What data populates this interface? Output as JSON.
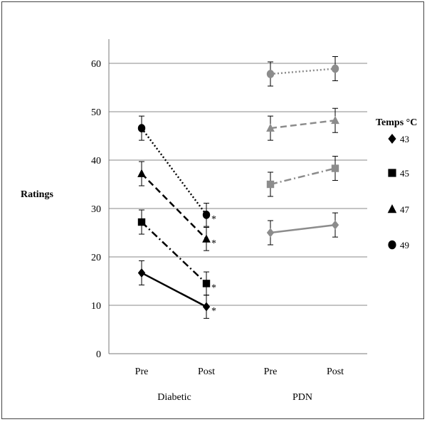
{
  "chart_data": {
    "type": "line",
    "ylabel": "Ratings",
    "ylim": [
      0,
      65
    ],
    "yticks": [
      0,
      10,
      20,
      30,
      40,
      50,
      60
    ],
    "grid": true,
    "groups": [
      {
        "name": "Diabetic",
        "categories": [
          "Pre",
          "Post"
        ]
      },
      {
        "name": "PDN",
        "categories": [
          "Pre",
          "Post"
        ]
      }
    ],
    "legend": {
      "title": "Temps °C",
      "position": "right",
      "entries": [
        "43",
        "45",
        "47",
        "49"
      ]
    },
    "series": [
      {
        "name": "43",
        "group": "Diabetic",
        "marker": "diamond",
        "dash": "solid",
        "color": "#000000",
        "values": [
          16.7,
          9.7
        ],
        "errors": [
          2.5,
          2.4
        ],
        "significant": [
          false,
          true
        ]
      },
      {
        "name": "45",
        "group": "Diabetic",
        "marker": "square",
        "dash": "dashdot",
        "color": "#000000",
        "values": [
          27.2,
          14.5
        ],
        "errors": [
          2.5,
          2.4
        ],
        "significant": [
          false,
          true
        ]
      },
      {
        "name": "47",
        "group": "Diabetic",
        "marker": "triangle",
        "dash": "dash",
        "color": "#000000",
        "values": [
          37.2,
          23.7
        ],
        "errors": [
          2.5,
          2.4
        ],
        "significant": [
          false,
          true
        ]
      },
      {
        "name": "49",
        "group": "Diabetic",
        "marker": "circle",
        "dash": "dot",
        "color": "#000000",
        "values": [
          46.6,
          28.7
        ],
        "errors": [
          2.5,
          2.4
        ],
        "significant": [
          false,
          true
        ]
      },
      {
        "name": "43",
        "group": "PDN",
        "marker": "diamond",
        "dash": "solid",
        "color": "#8c8c8c",
        "values": [
          25.0,
          26.6
        ],
        "errors": [
          2.5,
          2.5
        ],
        "significant": [
          false,
          false
        ]
      },
      {
        "name": "45",
        "group": "PDN",
        "marker": "square",
        "dash": "dashdot",
        "color": "#8c8c8c",
        "values": [
          35.0,
          38.3
        ],
        "errors": [
          2.5,
          2.5
        ],
        "significant": [
          false,
          false
        ]
      },
      {
        "name": "47",
        "group": "PDN",
        "marker": "triangle",
        "dash": "dash",
        "color": "#8c8c8c",
        "values": [
          46.6,
          48.2
        ],
        "errors": [
          2.5,
          2.5
        ],
        "significant": [
          false,
          false
        ]
      },
      {
        "name": "49",
        "group": "PDN",
        "marker": "circle",
        "dash": "dot",
        "color": "#8c8c8c",
        "values": [
          57.8,
          58.9
        ],
        "errors": [
          2.5,
          2.5
        ],
        "significant": [
          false,
          false
        ]
      }
    ],
    "annotation": "*"
  }
}
